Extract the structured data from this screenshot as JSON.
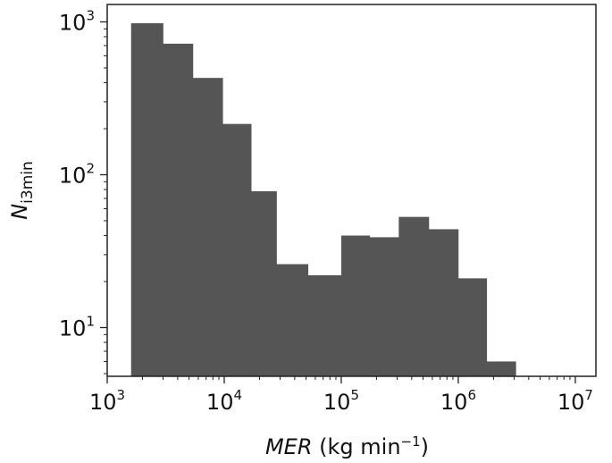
{
  "chart_data": {
    "type": "histogram",
    "title": "",
    "x_scale": "log",
    "y_scale": "log",
    "xlim": [
      1000,
      15000000
    ],
    "ylim": [
      4.8,
      1300
    ],
    "x_tick_labels": [
      {
        "base": "10",
        "exp": "3",
        "value": 1000
      },
      {
        "base": "10",
        "exp": "4",
        "value": 10000
      },
      {
        "base": "10",
        "exp": "5",
        "value": 100000
      },
      {
        "base": "10",
        "exp": "6",
        "value": 1000000
      },
      {
        "base": "10",
        "exp": "7",
        "value": 10000000
      }
    ],
    "y_tick_labels": [
      {
        "base": "10",
        "exp": "1",
        "value": 10
      },
      {
        "base": "10",
        "exp": "2",
        "value": 100
      },
      {
        "base": "10",
        "exp": "3",
        "value": 1000
      }
    ],
    "xlabel": {
      "italic": "MER",
      "rest": " (kg min",
      "sup": "−1",
      "close": ")"
    },
    "ylabel": {
      "main": "N",
      "sub": "i3min"
    },
    "bar_color": "#555555",
    "bins": [
      {
        "x0": 1600,
        "x1": 3000,
        "count": 980
      },
      {
        "x0": 3000,
        "x1": 5400,
        "count": 720
      },
      {
        "x0": 5400,
        "x1": 9700,
        "count": 430
      },
      {
        "x0": 9700,
        "x1": 17000,
        "count": 215
      },
      {
        "x0": 17000,
        "x1": 28000,
        "count": 78
      },
      {
        "x0": 28000,
        "x1": 52000,
        "count": 26
      },
      {
        "x0": 52000,
        "x1": 100000,
        "count": 22
      },
      {
        "x0": 100000,
        "x1": 175000,
        "count": 40
      },
      {
        "x0": 175000,
        "x1": 310000,
        "count": 39
      },
      {
        "x0": 310000,
        "x1": 560000,
        "count": 53
      },
      {
        "x0": 560000,
        "x1": 1000000,
        "count": 44
      },
      {
        "x0": 1000000,
        "x1": 1750000,
        "count": 21
      },
      {
        "x0": 1750000,
        "x1": 3100000,
        "count": 6
      }
    ]
  }
}
